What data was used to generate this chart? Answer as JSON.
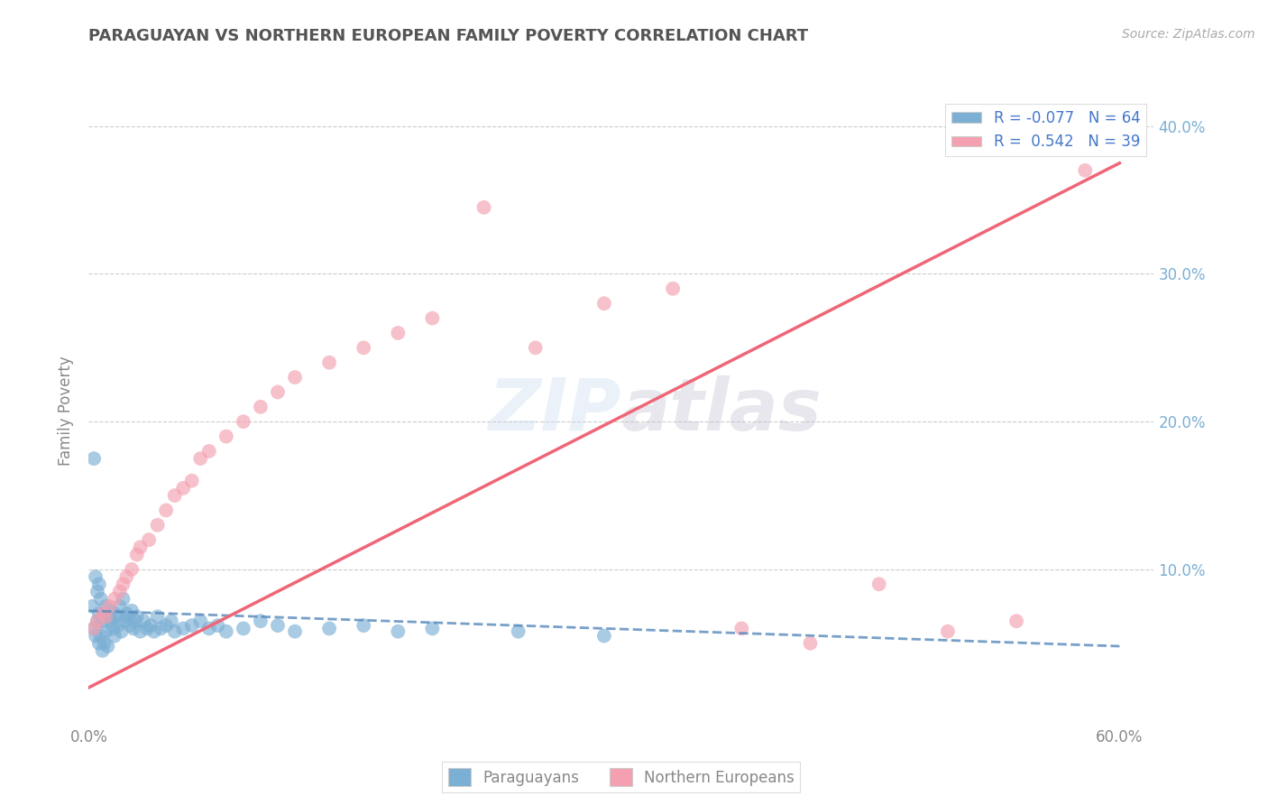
{
  "title": "PARAGUAYAN VS NORTHERN EUROPEAN FAMILY POVERTY CORRELATION CHART",
  "source": "Source: ZipAtlas.com",
  "ylabel": "Family Poverty",
  "xlim": [
    0.0,
    0.62
  ],
  "ylim": [
    -0.005,
    0.42
  ],
  "xticks": [
    0.0,
    0.6
  ],
  "xticklabels": [
    "0.0%",
    "60.0%"
  ],
  "yticks": [
    0.1,
    0.2,
    0.3,
    0.4
  ],
  "yticklabels": [
    "10.0%",
    "20.0%",
    "30.0%",
    "40.0%"
  ],
  "blue_color": "#7BAFD4",
  "pink_color": "#F4A0B0",
  "blue_line_color": "#5588BB",
  "pink_line_color": "#EE6677",
  "r_blue": -0.077,
  "n_blue": 64,
  "r_pink": 0.542,
  "n_pink": 39,
  "legend_labels": [
    "Paraguayans",
    "Northern Europeans"
  ],
  "watermark": "ZIPAtlas",
  "watermark_blue": "#C5D8EC",
  "watermark_gray": "#BBBBCC",
  "blue_x": [
    0.002,
    0.003,
    0.004,
    0.005,
    0.005,
    0.006,
    0.006,
    0.007,
    0.007,
    0.008,
    0.008,
    0.009,
    0.009,
    0.01,
    0.01,
    0.011,
    0.011,
    0.012,
    0.013,
    0.014,
    0.015,
    0.015,
    0.016,
    0.017,
    0.018,
    0.019,
    0.02,
    0.021,
    0.022,
    0.023,
    0.024,
    0.025,
    0.026,
    0.027,
    0.028,
    0.03,
    0.032,
    0.034,
    0.036,
    0.038,
    0.04,
    0.042,
    0.045,
    0.048,
    0.05,
    0.055,
    0.06,
    0.065,
    0.07,
    0.075,
    0.08,
    0.09,
    0.1,
    0.11,
    0.12,
    0.14,
    0.16,
    0.18,
    0.2,
    0.25,
    0.3,
    0.003,
    0.004,
    0.006
  ],
  "blue_y": [
    0.075,
    0.06,
    0.055,
    0.085,
    0.065,
    0.07,
    0.05,
    0.08,
    0.055,
    0.065,
    0.045,
    0.07,
    0.05,
    0.075,
    0.058,
    0.068,
    0.048,
    0.072,
    0.065,
    0.06,
    0.07,
    0.055,
    0.068,
    0.062,
    0.075,
    0.058,
    0.08,
    0.065,
    0.07,
    0.068,
    0.062,
    0.072,
    0.06,
    0.065,
    0.068,
    0.058,
    0.065,
    0.06,
    0.062,
    0.058,
    0.068,
    0.06,
    0.062,
    0.065,
    0.058,
    0.06,
    0.062,
    0.065,
    0.06,
    0.062,
    0.058,
    0.06,
    0.065,
    0.062,
    0.058,
    0.06,
    0.062,
    0.058,
    0.06,
    0.058,
    0.055,
    0.175,
    0.095,
    0.09
  ],
  "pink_x": [
    0.003,
    0.005,
    0.008,
    0.01,
    0.012,
    0.015,
    0.018,
    0.02,
    0.022,
    0.025,
    0.028,
    0.03,
    0.035,
    0.04,
    0.045,
    0.05,
    0.055,
    0.06,
    0.065,
    0.07,
    0.08,
    0.09,
    0.1,
    0.11,
    0.12,
    0.14,
    0.16,
    0.18,
    0.2,
    0.23,
    0.26,
    0.3,
    0.34,
    0.38,
    0.42,
    0.46,
    0.5,
    0.54,
    0.58
  ],
  "pink_y": [
    0.06,
    0.065,
    0.07,
    0.068,
    0.075,
    0.08,
    0.085,
    0.09,
    0.095,
    0.1,
    0.11,
    0.115,
    0.12,
    0.13,
    0.14,
    0.15,
    0.155,
    0.16,
    0.175,
    0.18,
    0.19,
    0.2,
    0.21,
    0.22,
    0.23,
    0.24,
    0.25,
    0.26,
    0.27,
    0.345,
    0.25,
    0.28,
    0.29,
    0.06,
    0.05,
    0.09,
    0.058,
    0.065,
    0.37
  ],
  "blue_line_x": [
    0.0,
    0.6
  ],
  "blue_line_y": [
    0.072,
    0.048
  ],
  "pink_line_x": [
    0.0,
    0.6
  ],
  "pink_line_y": [
    0.02,
    0.375
  ]
}
